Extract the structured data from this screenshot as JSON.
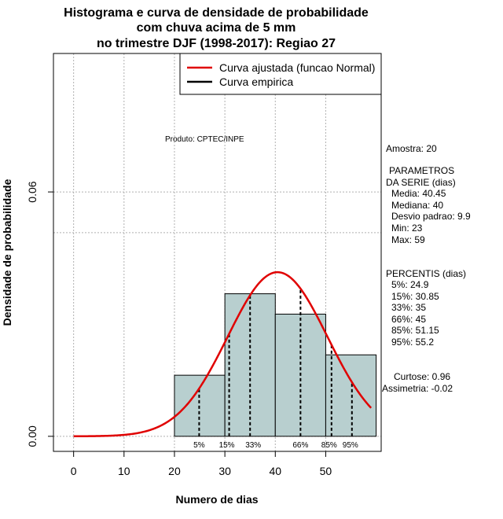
{
  "chart_data": {
    "type": "bar",
    "title": [
      "Histograma e curva de densidade de probabilidade",
      "com chuva acima de 5 mm",
      "no trimestre DJF (1998-2017): Regiao 27"
    ],
    "xlabel": "Numero de dias",
    "ylabel": "Densidade de probabilidade",
    "xlim": [
      -4,
      61
    ],
    "ylim": [
      -0.0037,
      0.094
    ],
    "xticks": [
      0,
      10,
      20,
      30,
      40,
      50
    ],
    "yticks": [
      0.0,
      0.06
    ],
    "ytick_labels": [
      "0.00",
      "0.06"
    ],
    "grid": true,
    "extra_hline": 0.05,
    "histogram": {
      "bins": [
        [
          20,
          30
        ],
        [
          30,
          40
        ],
        [
          40,
          50
        ],
        [
          50,
          60
        ]
      ],
      "density": [
        0.015,
        0.035,
        0.03,
        0.02
      ],
      "color": "#b8cfcf"
    },
    "normal_curve": {
      "name": "Curva ajustada (funcao Normal)",
      "color": "#e00000",
      "mean": 40.45,
      "sd": 9.9,
      "x_range": [
        0,
        59
      ]
    },
    "empirical_curve": {
      "name": "Curva empirica",
      "color": "#000000"
    },
    "percentile_lines": [
      {
        "x": 24.9,
        "label": "5%"
      },
      {
        "x": 30.85,
        "label": "15%"
      },
      {
        "x": 35,
        "label": "33%"
      },
      {
        "x": 45,
        "label": "66%"
      },
      {
        "x": 51.15,
        "label": "85%"
      },
      {
        "x": 55.2,
        "label": "95%"
      }
    ],
    "legend_placement": "top-right"
  },
  "annotations": {
    "produto": "Produto: CPTEC/INPE",
    "amostra": "Amostra: 20",
    "param_title_1": "PARAMETROS",
    "param_title_2": "DA SERIE (dias)",
    "media": "Media: 40.45",
    "mediana": "Mediana: 40",
    "desvio": "Desvio padrao: 9.9",
    "min": "Min: 23",
    "max": "Max: 59",
    "perc_title": "PERCENTIS (dias)",
    "p5": "5%: 24.9",
    "p15": "15%: 30.85",
    "p33": "33%: 35",
    "p66": "66%: 45",
    "p85": "85%: 51.15",
    "p95": "95%: 55.2",
    "curtose": "Curtose: 0.96",
    "assimetria": "Assimetria: -0.02"
  }
}
